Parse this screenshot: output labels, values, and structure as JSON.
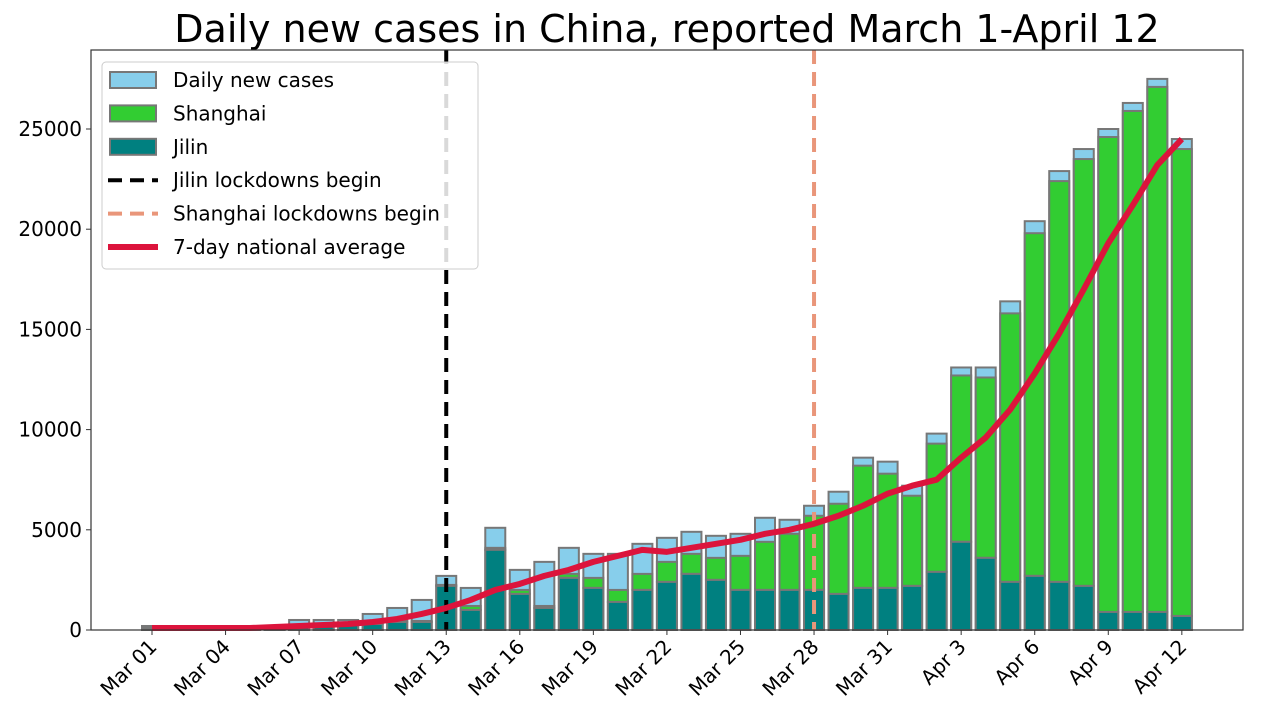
{
  "chart_data": {
    "type": "bar",
    "title": "Daily new cases in China, reported March 1-April 12",
    "xlabel": "",
    "ylabel": "",
    "ylim": [
      0,
      29000
    ],
    "yticks": [
      0,
      5000,
      10000,
      15000,
      20000,
      25000
    ],
    "categories": [
      "Mar 01",
      "Mar 02",
      "Mar 03",
      "Mar 04",
      "Mar 05",
      "Mar 06",
      "Mar 07",
      "Mar 08",
      "Mar 09",
      "Mar 10",
      "Mar 11",
      "Mar 12",
      "Mar 13",
      "Mar 14",
      "Mar 15",
      "Mar 16",
      "Mar 17",
      "Mar 18",
      "Mar 19",
      "Mar 20",
      "Mar 21",
      "Mar 22",
      "Mar 23",
      "Mar 24",
      "Mar 25",
      "Mar 26",
      "Mar 27",
      "Mar 28",
      "Mar 29",
      "Mar 30",
      "Mar 31",
      "Apr 1",
      "Apr 2",
      "Apr 3",
      "Apr 4",
      "Apr 5",
      "Apr 6",
      "Apr 7",
      "Apr 8",
      "Apr 9",
      "Apr 10",
      "Apr 11",
      "Apr 12"
    ],
    "xtick_labels": [
      "Mar 01",
      "Mar 04",
      "Mar 07",
      "Mar 10",
      "Mar 13",
      "Mar 16",
      "Mar 19",
      "Mar 22",
      "Mar 25",
      "Mar 28",
      "Mar 31",
      "Apr 3",
      "Apr 6",
      "Apr 9",
      "Apr 12"
    ],
    "series": [
      {
        "name": "Daily new cases",
        "color": "#87ceeb",
        "values": [
          200,
          120,
          150,
          150,
          180,
          200,
          500,
          500,
          500,
          800,
          1100,
          1500,
          2700,
          2100,
          5100,
          3000,
          3400,
          4100,
          3800,
          3800,
          4300,
          4600,
          4900,
          4700,
          4800,
          5600,
          5500,
          6200,
          6900,
          8600,
          8400,
          7200,
          9800,
          13100,
          13100,
          16400,
          20400,
          22900,
          24000,
          25000,
          26300,
          27500,
          24500
        ]
      },
      {
        "name": "Shanghai",
        "color": "#32cd32",
        "values": [
          0,
          0,
          0,
          0,
          0,
          0,
          10,
          10,
          10,
          20,
          50,
          50,
          50,
          200,
          100,
          200,
          100,
          200,
          500,
          600,
          800,
          1000,
          1000,
          1100,
          1700,
          2400,
          2800,
          3700,
          4500,
          6100,
          5700,
          4500,
          6400,
          8300,
          9000,
          13400,
          17100,
          20000,
          21300,
          23700,
          25000,
          26200,
          23300
        ]
      },
      {
        "name": "Jilin",
        "color": "#008080",
        "values": [
          100,
          50,
          50,
          50,
          80,
          100,
          200,
          200,
          300,
          300,
          400,
          400,
          2200,
          1000,
          4000,
          1800,
          1100,
          2600,
          2100,
          1400,
          2000,
          2400,
          2800,
          2500,
          2000,
          2000,
          2000,
          2000,
          1800,
          2100,
          2100,
          2200,
          2900,
          4400,
          3600,
          2400,
          2700,
          2400,
          2200,
          900,
          900,
          900,
          700
        ]
      },
      {
        "name": "7-day national average",
        "type": "line",
        "color": "#dc143c",
        "values": [
          100,
          100,
          100,
          100,
          100,
          150,
          200,
          250,
          300,
          400,
          550,
          800,
          1100,
          1500,
          2000,
          2300,
          2700,
          3000,
          3400,
          3700,
          4000,
          3900,
          4100,
          4300,
          4500,
          4800,
          5000,
          5300,
          5700,
          6200,
          6800,
          7200,
          7500,
          8600,
          9600,
          11000,
          12800,
          14800,
          17000,
          19300,
          21200,
          23200,
          24500
        ]
      }
    ],
    "vlines": [
      {
        "name": "Jilin lockdowns begin",
        "at": "Mar 13",
        "color": "#000000"
      },
      {
        "name": "Shanghai lockdowns begin",
        "at": "Mar 28",
        "color": "#e9967a"
      }
    ],
    "legend_position": "top-left",
    "legend": [
      "Daily new cases",
      "Shanghai",
      "Jilin",
      "Jilin lockdowns begin",
      "Shanghai lockdowns begin",
      "7-day national average"
    ],
    "grid": false
  }
}
